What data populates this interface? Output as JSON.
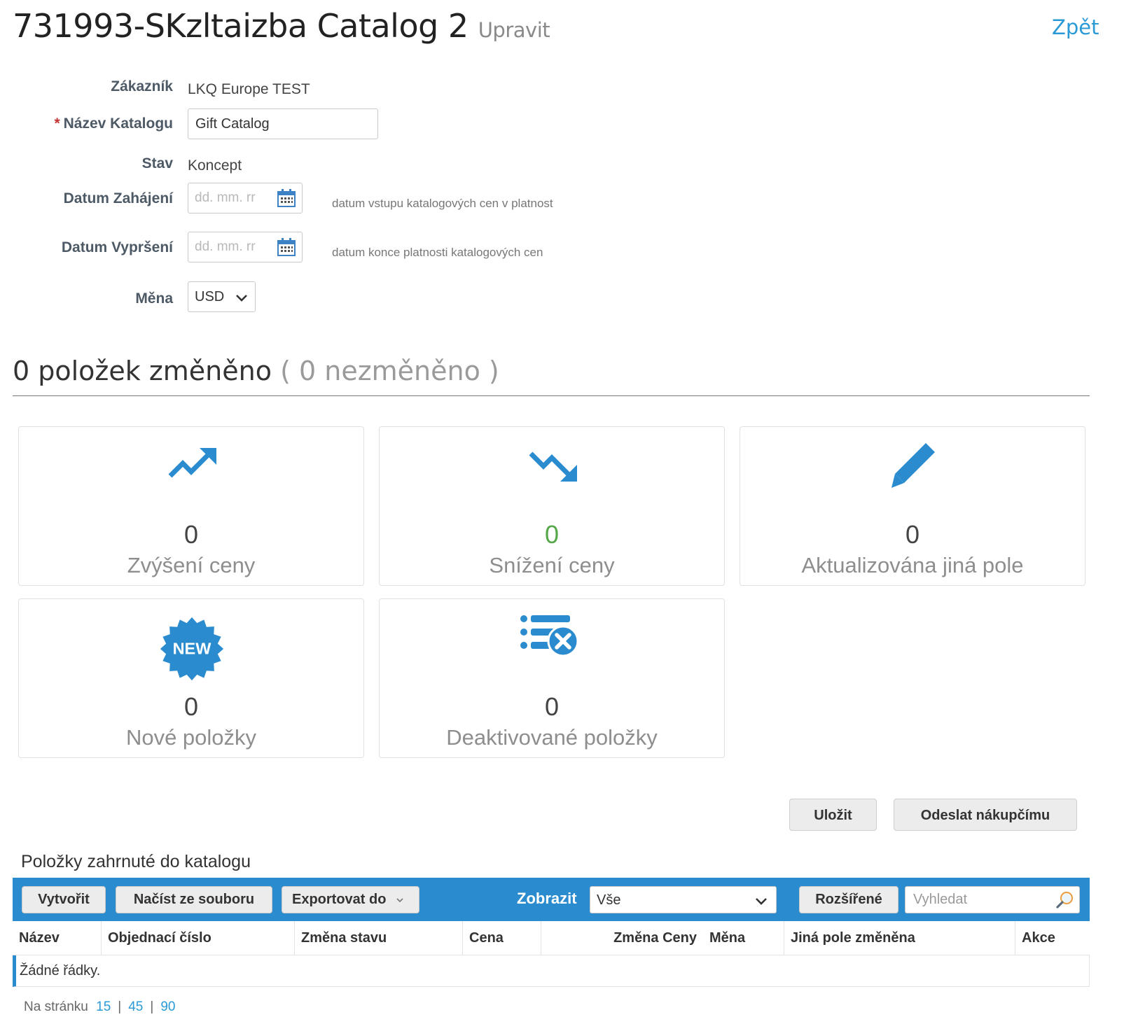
{
  "header": {
    "title": "731993-SKzltaizba Catalog 2",
    "subtitle": "Upravit",
    "back_link": "Zpět"
  },
  "form": {
    "customer_label": "Zákazník",
    "customer_value": "LKQ Europe TEST",
    "required_marker": "*",
    "catalog_name_label": "Název Katalogu",
    "catalog_name_value": "Gift Catalog",
    "status_label": "Stav",
    "status_value": "Koncept",
    "start_date_label": "Datum Zahájení",
    "start_date_placeholder": "dd. mm. rr",
    "start_date_hint": "datum vstupu katalogových cen v platnost",
    "end_date_label": "Datum Vypršení",
    "end_date_placeholder": "dd. mm. rr",
    "end_date_hint": "datum konce platnosti katalogových cen",
    "currency_label": "Měna",
    "currency_value": "USD"
  },
  "summary": {
    "changed_text": "0 položek změněno",
    "unchanged_text": "( 0 nezměněno )",
    "tiles": [
      {
        "icon": "trending-up-icon",
        "count": "0",
        "label": "Zvýšení ceny",
        "count_color": "#444444"
      },
      {
        "icon": "trending-down-icon",
        "count": "0",
        "label": "Snížení ceny",
        "count_color": "#56a84a"
      },
      {
        "icon": "pencil-icon",
        "count": "0",
        "label": "Aktualizována jiná pole",
        "count_color": "#444444"
      },
      {
        "icon": "new-badge-icon",
        "icon_text": "NEW",
        "count": "0",
        "label": "Nové položky",
        "count_color": "#444444"
      },
      {
        "icon": "list-remove-icon",
        "count": "0",
        "label": "Deaktivované položky",
        "count_color": "#444444"
      }
    ]
  },
  "actions": {
    "save": "Uložit",
    "send": "Odeslat nákupčímu"
  },
  "items": {
    "section_title": "Položky zahrnuté do katalogu",
    "toolbar": {
      "create": "Vytvořit",
      "import": "Načíst ze souboru",
      "export": "Exportovat do",
      "show_label": "Zobrazit",
      "show_value": "Vše",
      "advanced": "Rozšířené",
      "search_placeholder": "Vyhledat"
    },
    "columns": [
      "Název",
      "Objednací číslo",
      "Změna stavu",
      "Cena",
      "Změna Ceny",
      "Měna",
      "Jiná pole změněna",
      "Akce"
    ],
    "empty_text": "Žádné řádky."
  },
  "pager": {
    "label": "Na stránku",
    "options": [
      "15",
      "45",
      "90"
    ],
    "separator": "|"
  },
  "colors": {
    "accent": "#2a8bcf",
    "link": "#2a9ad6",
    "positive": "#56a84a",
    "required": "#c43535"
  }
}
